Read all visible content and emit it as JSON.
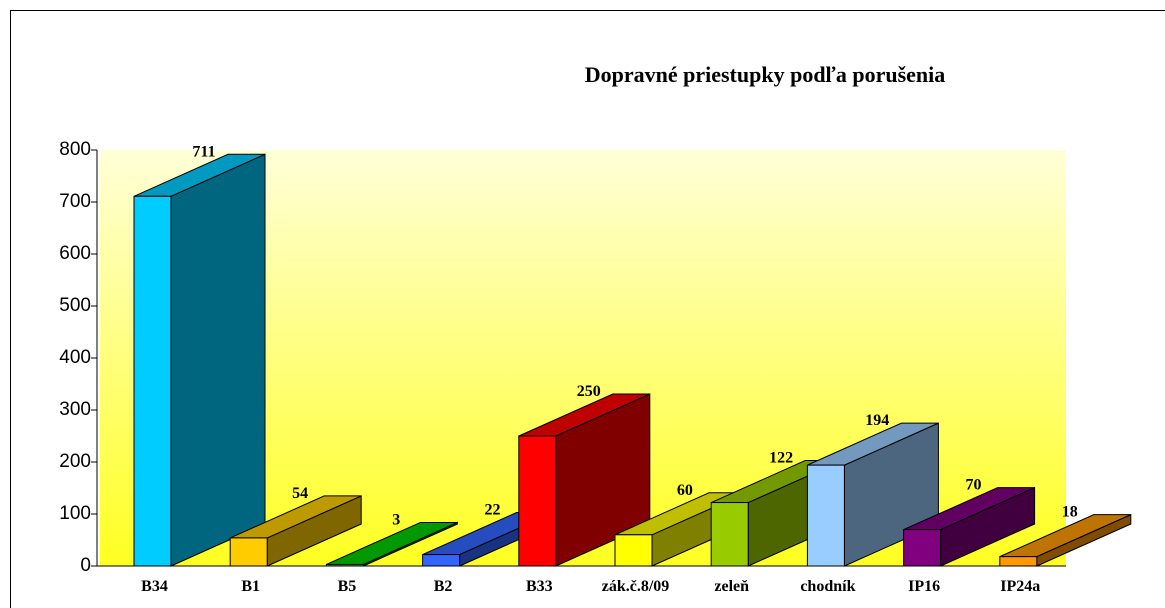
{
  "chart_data": {
    "type": "bar3d",
    "title": "Dopravné priestupky podľa porušenia",
    "categories": [
      "B34",
      "B1",
      "B5",
      "B2",
      "B33",
      "zák.č.8/09",
      "zeleň",
      "chodník",
      "IP16",
      "IP24a"
    ],
    "values": [
      711,
      54,
      3,
      22,
      250,
      60,
      122,
      194,
      70,
      18
    ],
    "colors": [
      "#00ccff",
      "#ffcc00",
      "#00cc00",
      "#3366ff",
      "#ff0000",
      "#ffff00",
      "#99cc00",
      "#99ccff",
      "#800080",
      "#ff9900"
    ],
    "ylim": [
      0,
      800
    ],
    "yticks": [
      0,
      100,
      200,
      300,
      400,
      500,
      600,
      700,
      800
    ]
  }
}
